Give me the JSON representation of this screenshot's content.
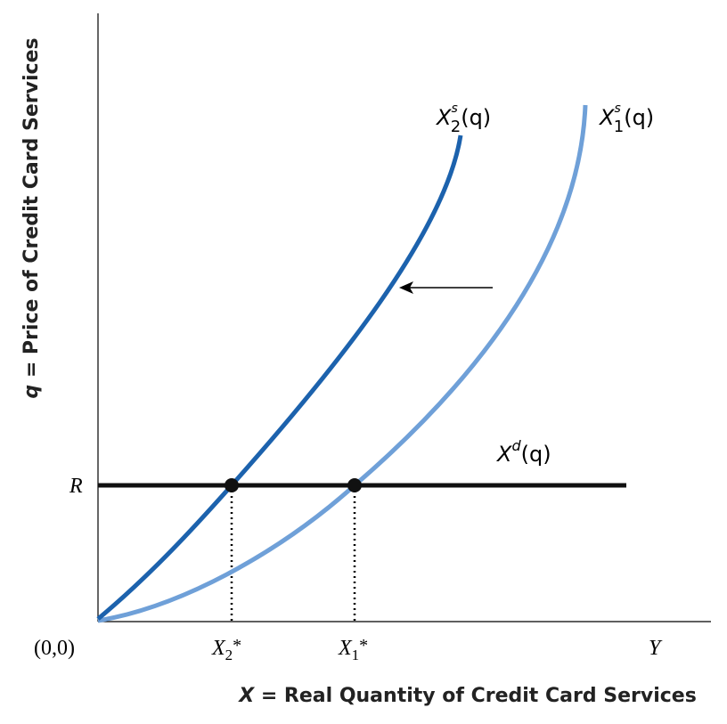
{
  "axes": {
    "y_label": {
      "var": "q",
      "text": " = Price of Credit Card Services"
    },
    "x_label": {
      "var": "X",
      "text": " = Real Quantity of Credit Card Services"
    }
  },
  "ticks": {
    "origin": "(0,0)",
    "r": "R",
    "y": "Y",
    "x2": {
      "base": "X",
      "sub": "2",
      "mark": "*"
    },
    "x1": {
      "base": "X",
      "sub": "1",
      "mark": "*"
    }
  },
  "curves": [
    {
      "base": "X",
      "sub": "2",
      "sup": "s",
      "arg": "(q)"
    },
    {
      "base": "X",
      "sub": "1",
      "sup": "s",
      "arg": "(q)"
    },
    {
      "base": "X",
      "sup": "d",
      "arg": "(q)"
    }
  ]
}
